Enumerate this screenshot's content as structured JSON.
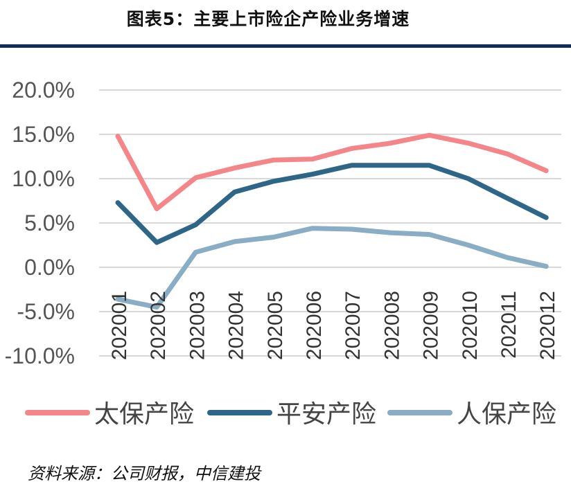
{
  "title": "图表5：主要上市险企产险业务增速",
  "source": "资料来源：公司财报，中信建投",
  "chart_data": {
    "type": "line",
    "categories": [
      "202001",
      "202002",
      "202003",
      "202004",
      "202005",
      "202006",
      "202007",
      "202008",
      "202009",
      "202010",
      "202011",
      "202012"
    ],
    "series": [
      {
        "name": "太保产险",
        "color": "#f4868a",
        "values": [
          14.8,
          6.6,
          10.1,
          11.2,
          12.1,
          12.2,
          13.4,
          14.0,
          14.9,
          14.0,
          12.8,
          10.9
        ]
      },
      {
        "name": "平安产险",
        "color": "#2e6687",
        "values": [
          7.3,
          2.8,
          4.8,
          8.5,
          9.7,
          10.5,
          11.5,
          11.5,
          11.5,
          10.0,
          7.8,
          5.6
        ]
      },
      {
        "name": "人保产险",
        "color": "#89adc5",
        "values": [
          -3.6,
          -4.5,
          1.7,
          2.9,
          3.4,
          4.4,
          4.3,
          3.9,
          3.7,
          2.5,
          1.1,
          0.1
        ]
      }
    ],
    "y_ticks": [
      "20.0%",
      "15.0%",
      "10.0%",
      "5.0%",
      "0.0%",
      "-5.0%",
      "-10.0%"
    ],
    "ylim": [
      -10,
      20
    ],
    "legend": "bottom",
    "grid": true
  }
}
